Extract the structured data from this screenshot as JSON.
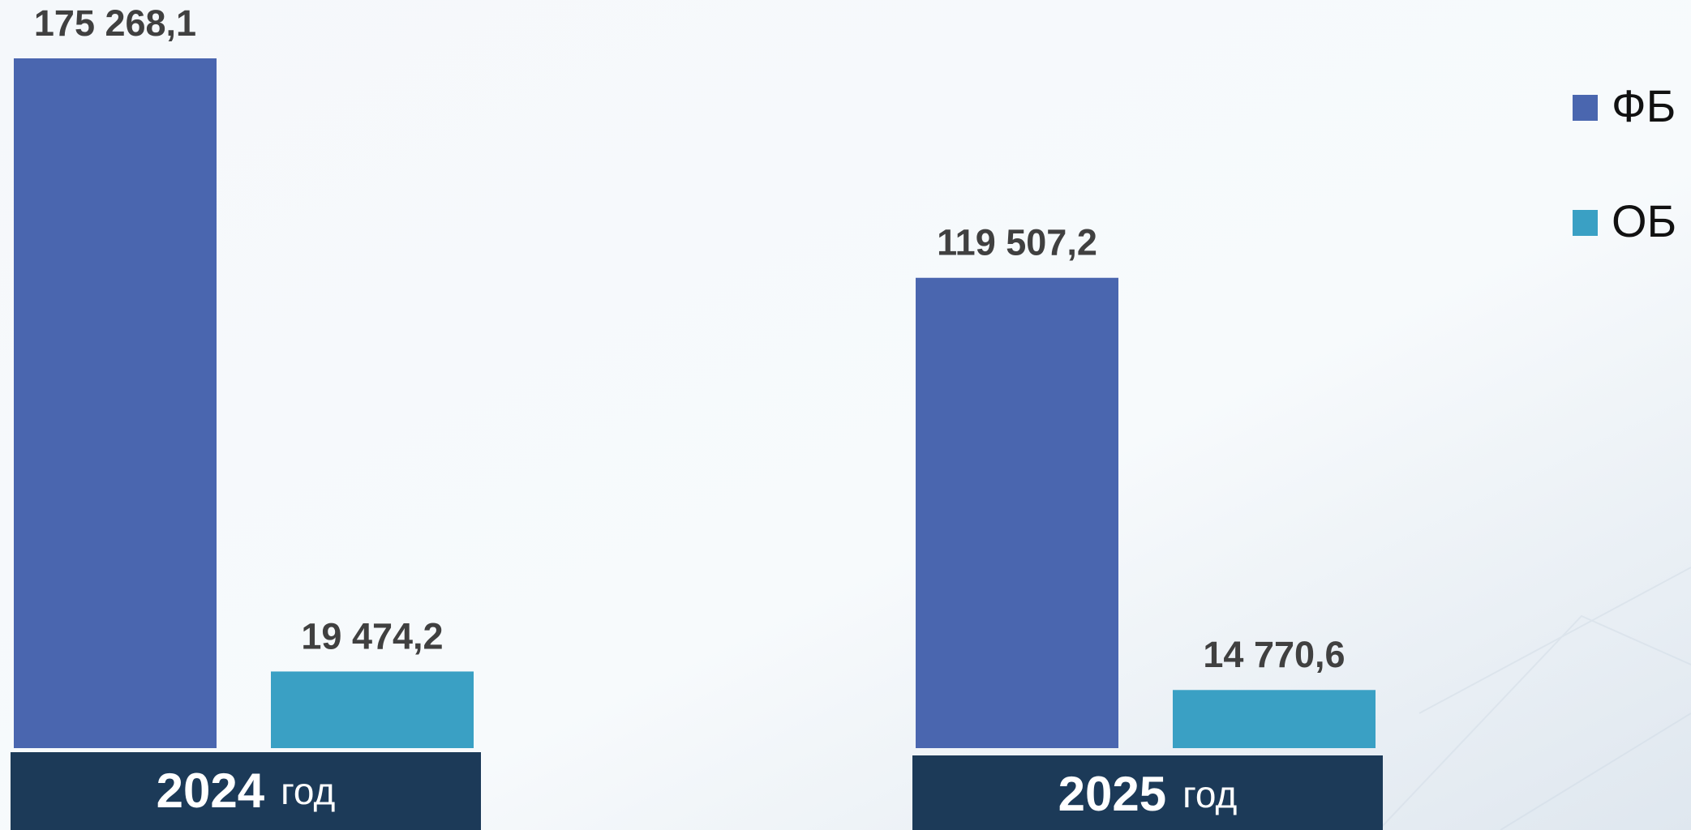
{
  "chart_data": {
    "type": "bar",
    "categories": [
      "2024",
      "2025"
    ],
    "category_suffix": "год",
    "series": [
      {
        "name": "ФБ",
        "color": "#4a66af",
        "values": [
          175268.1,
          119507.2
        ],
        "value_labels": [
          "175 268,1",
          "119 507,2"
        ]
      },
      {
        "name": "ОБ",
        "color": "#3aa0c4",
        "values": [
          19474.2,
          14770.6
        ],
        "value_labels": [
          "19 474,2",
          "14 770,6"
        ]
      }
    ],
    "legend": "top-right"
  }
}
